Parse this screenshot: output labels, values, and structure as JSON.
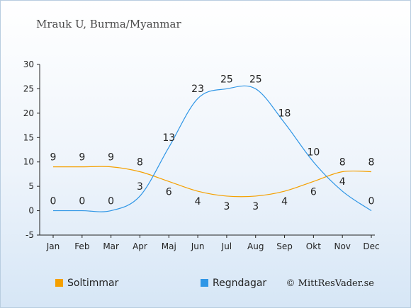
{
  "chart_data": {
    "type": "line",
    "title": "Mrauk U, Burma/Myanmar",
    "categories": [
      "Jan",
      "Feb",
      "Mar",
      "Apr",
      "Maj",
      "Jun",
      "Jul",
      "Aug",
      "Sep",
      "Okt",
      "Nov",
      "Dec"
    ],
    "series": [
      {
        "name": "Soltimmar",
        "color": "#f5a000",
        "values": [
          9,
          9,
          9,
          8,
          6,
          4,
          3,
          3,
          4,
          6,
          8,
          8
        ]
      },
      {
        "name": "Regndagar",
        "color": "#2f96e6",
        "values": [
          0,
          0,
          0,
          3,
          13,
          23,
          25,
          25,
          18,
          10,
          4,
          0
        ]
      }
    ],
    "ylim": [
      -5,
      30
    ],
    "yticks": [
      -5,
      0,
      5,
      10,
      15,
      20,
      25,
      30
    ],
    "grid": false,
    "legend": "bottom-left",
    "credit": "© MittResVader.se"
  }
}
